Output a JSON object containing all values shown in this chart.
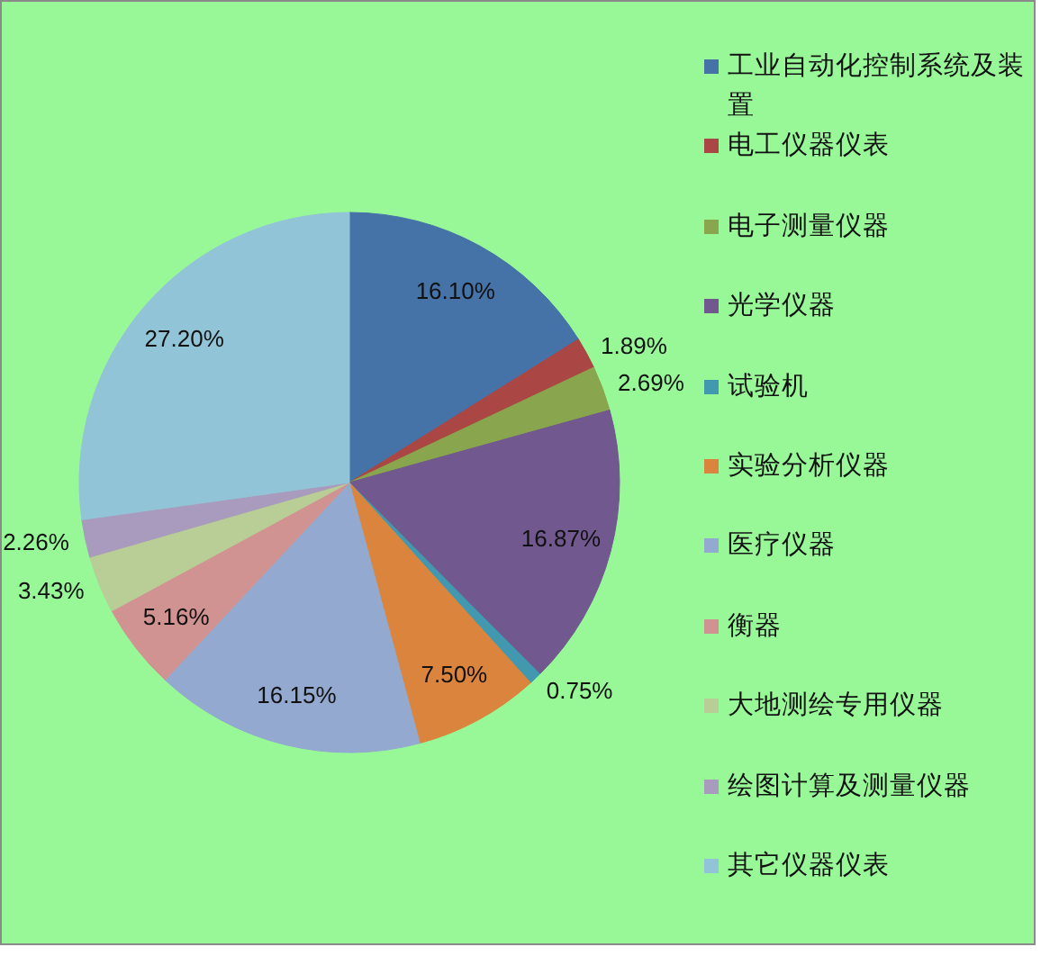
{
  "chart_data": {
    "type": "pie",
    "categories": [
      "工业自动化控制系统及装置",
      "电工仪器仪表",
      "电子测量仪器",
      "光学仪器",
      "试验机",
      "实验分析仪器",
      "医疗仪器",
      "衡器",
      "大地测绘专用仪器",
      "绘图计算及测量仪器",
      "其它仪器仪表"
    ],
    "values": [
      16.1,
      1.89,
      2.69,
      16.87,
      0.75,
      7.5,
      16.15,
      5.16,
      3.43,
      2.26,
      27.2
    ],
    "colors": [
      "#4572a7",
      "#aa4643",
      "#89a54e",
      "#71588f",
      "#4198af",
      "#db843d",
      "#93a9cf",
      "#d19392",
      "#b9cd96",
      "#a99bbd",
      "#92c4d7"
    ],
    "value_labels": [
      "16.10%",
      "1.89%",
      "2.69%",
      "16.87%",
      "0.75%",
      "7.50%",
      "16.15%",
      "5.16%",
      "3.43%",
      "2.26%",
      "27.20%"
    ],
    "legend": "right"
  }
}
